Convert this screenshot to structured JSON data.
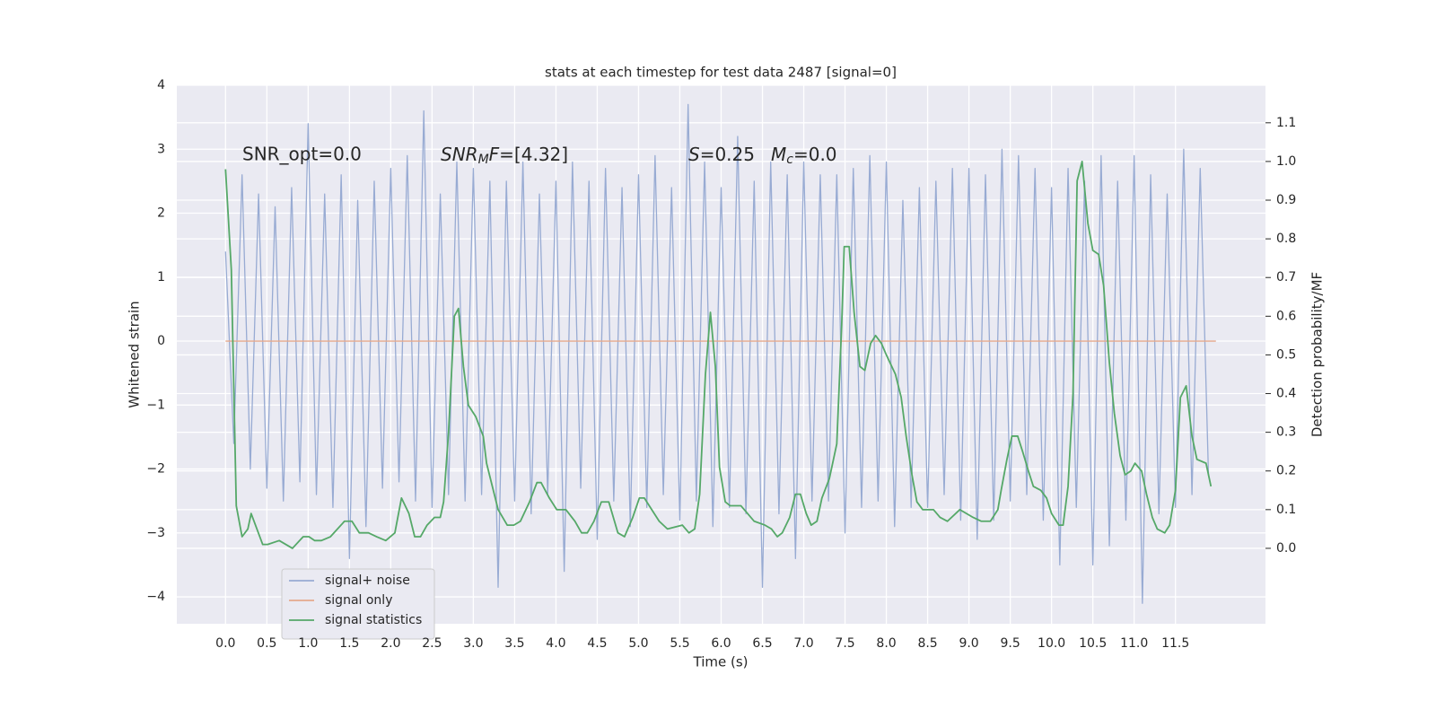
{
  "chart_data": {
    "type": "line",
    "title": "stats at each timestep for test data 2487 [signal=0]",
    "xlabel": "Time (s)",
    "ylabel": "Whitened strain",
    "y2label": "Detection probability/MF",
    "annotations": [
      [
        "SNR_opt=0.0"
      ],
      [
        "SNR",
        "M",
        "F",
        "=[4.32]"
      ],
      [
        "S",
        "=0.25",
        "M",
        "c",
        "=0.0"
      ]
    ],
    "xlim": [
      -0.59,
      12.59
    ],
    "ylim": [
      -4.42,
      4.0
    ],
    "y2lim": [
      -0.195,
      1.197
    ],
    "xticks": [
      {
        "value": 0,
        "label": "0.0"
      },
      0.5,
      {
        "value": 1,
        "label": "1.0"
      },
      1.5,
      {
        "value": 2,
        "label": "2.0"
      },
      2.5,
      {
        "value": 3,
        "label": "3.0"
      },
      3.5,
      {
        "value": 4,
        "label": "4.0"
      },
      4.5,
      {
        "value": 5,
        "label": "5.0"
      },
      5.5,
      {
        "value": 6,
        "label": "6.0"
      },
      6.5,
      {
        "value": 7,
        "label": "7.0"
      },
      7.5,
      {
        "value": 8,
        "label": "8.0"
      },
      8.5,
      {
        "value": 9,
        "label": "9.0"
      },
      9.5,
      {
        "value": 10,
        "label": "10.0"
      },
      10.5,
      {
        "value": 11,
        "label": "11.0"
      },
      11.5
    ],
    "yticks": [
      {
        "value": -4,
        "label": "−4"
      },
      {
        "value": -3,
        "label": "−3"
      },
      {
        "value": -2,
        "label": "−2"
      },
      {
        "value": -1,
        "label": "−1"
      },
      0,
      1,
      2,
      3,
      4
    ],
    "y2ticks": [
      {
        "value": 0,
        "label": "0.0"
      },
      0.1,
      0.2,
      0.3,
      0.4,
      0.5,
      0.6,
      0.7,
      0.8,
      0.9,
      {
        "value": 1,
        "label": "1.0"
      },
      1.1
    ],
    "grid": true,
    "legend": "lower left",
    "series": [
      {
        "name": "signal+ noise",
        "color": "#98abd3",
        "x": [
          0,
          0.1,
          0.2,
          0.3,
          0.4,
          0.5,
          0.6,
          0.7,
          0.8,
          0.9,
          1,
          1.1,
          1.2,
          1.3,
          1.4,
          1.5,
          1.6,
          1.7,
          1.8,
          1.9,
          2,
          2.1,
          2.2,
          2.3,
          2.4,
          2.5,
          2.6,
          2.7,
          2.8,
          2.9,
          3,
          3.1,
          3.2,
          3.3,
          3.4,
          3.5,
          3.6,
          3.7,
          3.8,
          3.9,
          4,
          4.1,
          4.2,
          4.3,
          4.4,
          4.5,
          4.6,
          4.7,
          4.8,
          4.9,
          5,
          5.1,
          5.2,
          5.3,
          5.4,
          5.5,
          5.6,
          5.7,
          5.8,
          5.9,
          6,
          6.1,
          6.2,
          6.3,
          6.4,
          6.5,
          6.6,
          6.7,
          6.8,
          6.9,
          7,
          7.1,
          7.2,
          7.3,
          7.4,
          7.5,
          7.6,
          7.7,
          7.8,
          7.9,
          8,
          8.1,
          8.2,
          8.3,
          8.4,
          8.5,
          8.6,
          8.7,
          8.8,
          8.9,
          9,
          9.1,
          9.2,
          9.3,
          9.4,
          9.5,
          9.6,
          9.7,
          9.8,
          9.9,
          10,
          10.1,
          10.2,
          10.3,
          10.4,
          10.5,
          10.6,
          10.7,
          10.8,
          10.9,
          11,
          11.1,
          11.2,
          11.3,
          11.4,
          11.5,
          11.6,
          11.7,
          11.8,
          11.9
        ],
        "values": [
          1.4,
          -1.6,
          2.6,
          -2.0,
          2.3,
          -2.3,
          2.1,
          -2.5,
          2.4,
          -2.2,
          3.4,
          -2.4,
          2.3,
          -2.6,
          2.6,
          -3.4,
          2.2,
          -2.9,
          2.5,
          -2.3,
          2.7,
          -2.2,
          2.9,
          -2.5,
          3.6,
          -2.6,
          2.3,
          -2.4,
          2.8,
          -2.5,
          2.7,
          -2.4,
          2.5,
          -3.85,
          2.5,
          -2.5,
          2.8,
          -2.7,
          2.3,
          -2.4,
          2.5,
          -3.6,
          2.8,
          -2.3,
          2.5,
          -3.1,
          2.7,
          -2.5,
          2.4,
          -2.9,
          2.6,
          -2.6,
          2.9,
          -2.4,
          2.4,
          -2.8,
          3.7,
          -2.5,
          2.8,
          -2.9,
          2.4,
          -2.6,
          3.2,
          -2.7,
          2.5,
          -3.85,
          2.8,
          -2.7,
          2.6,
          -3.4,
          2.8,
          -2.5,
          2.6,
          -2.5,
          2.6,
          -3.0,
          2.7,
          -2.6,
          2.9,
          -2.5,
          2.8,
          -2.9,
          2.2,
          -2.6,
          2.4,
          -2.6,
          2.5,
          -2.4,
          2.7,
          -2.8,
          2.7,
          -3.1,
          2.6,
          -2.8,
          3.0,
          -2.5,
          2.9,
          -2.4,
          2.7,
          -2.8,
          2.4,
          -3.5,
          2.7,
          -2.6,
          2.5,
          -3.5,
          2.9,
          -3.2,
          2.5,
          -2.8,
          2.9,
          -4.1,
          2.6,
          -2.7,
          2.3,
          -2.6,
          3.0,
          -2.4,
          2.7,
          -2.1
        ]
      },
      {
        "name": "signal only",
        "color": "#e6a98c",
        "x": [
          0,
          11.99
        ],
        "values": [
          0,
          0
        ]
      },
      {
        "name": "signal statistics",
        "color": "#55a868",
        "axis": "y2",
        "x": [
          0.0,
          0.07,
          0.13,
          0.2,
          0.27,
          0.31,
          0.38,
          0.45,
          0.51,
          0.65,
          0.81,
          0.94,
          1.01,
          1.08,
          1.16,
          1.27,
          1.44,
          1.53,
          1.62,
          1.73,
          1.83,
          1.94,
          2.05,
          2.13,
          2.22,
          2.29,
          2.36,
          2.44,
          2.53,
          2.6,
          2.64,
          2.7,
          2.77,
          2.82,
          2.88,
          2.94,
          3.03,
          3.12,
          3.16,
          3.23,
          3.3,
          3.41,
          3.49,
          3.57,
          3.68,
          3.77,
          3.82,
          3.92,
          4.01,
          4.12,
          4.23,
          4.31,
          4.38,
          4.46,
          4.55,
          4.64,
          4.75,
          4.83,
          4.93,
          5.01,
          5.07,
          5.16,
          5.25,
          5.35,
          5.53,
          5.61,
          5.68,
          5.74,
          5.81,
          5.87,
          5.93,
          5.98,
          6.05,
          6.11,
          6.24,
          6.4,
          6.53,
          6.61,
          6.68,
          6.74,
          6.83,
          6.9,
          6.96,
          7.03,
          7.09,
          7.16,
          7.22,
          7.31,
          7.4,
          7.46,
          7.49,
          7.55,
          7.61,
          7.68,
          7.74,
          7.81,
          7.87,
          7.94,
          8.0,
          8.11,
          8.18,
          8.24,
          8.31,
          8.37,
          8.44,
          8.57,
          8.65,
          8.74,
          8.89,
          9.05,
          9.15,
          9.26,
          9.35,
          9.39,
          9.46,
          9.52,
          9.59,
          9.65,
          9.72,
          9.78,
          9.87,
          9.94,
          10.0,
          10.09,
          10.14,
          10.2,
          10.26,
          10.31,
          10.37,
          10.44,
          10.5,
          10.57,
          10.63,
          10.7,
          10.76,
          10.83,
          10.89,
          10.96,
          11.01,
          11.09,
          11.15,
          11.22,
          11.28,
          11.37,
          11.43,
          11.5,
          11.56,
          11.63,
          11.7,
          11.76,
          11.87,
          11.93
        ],
        "values": [
          0.98,
          0.72,
          0.11,
          0.03,
          0.05,
          0.09,
          0.05,
          0.01,
          0.01,
          0.02,
          0.0,
          0.03,
          0.03,
          0.02,
          0.02,
          0.03,
          0.07,
          0.07,
          0.04,
          0.04,
          0.03,
          0.02,
          0.04,
          0.13,
          0.09,
          0.03,
          0.03,
          0.06,
          0.08,
          0.08,
          0.12,
          0.3,
          0.6,
          0.62,
          0.47,
          0.37,
          0.34,
          0.29,
          0.22,
          0.16,
          0.1,
          0.06,
          0.06,
          0.07,
          0.12,
          0.17,
          0.17,
          0.13,
          0.1,
          0.1,
          0.07,
          0.04,
          0.04,
          0.07,
          0.12,
          0.12,
          0.04,
          0.03,
          0.08,
          0.13,
          0.13,
          0.1,
          0.07,
          0.05,
          0.06,
          0.04,
          0.05,
          0.14,
          0.45,
          0.61,
          0.47,
          0.21,
          0.12,
          0.11,
          0.11,
          0.07,
          0.06,
          0.05,
          0.03,
          0.04,
          0.08,
          0.14,
          0.14,
          0.09,
          0.06,
          0.07,
          0.13,
          0.18,
          0.27,
          0.58,
          0.78,
          0.78,
          0.61,
          0.47,
          0.46,
          0.53,
          0.55,
          0.53,
          0.5,
          0.45,
          0.39,
          0.29,
          0.19,
          0.12,
          0.1,
          0.1,
          0.08,
          0.07,
          0.1,
          0.08,
          0.07,
          0.07,
          0.1,
          0.15,
          0.23,
          0.29,
          0.29,
          0.25,
          0.2,
          0.16,
          0.15,
          0.13,
          0.09,
          0.06,
          0.06,
          0.16,
          0.4,
          0.95,
          1.0,
          0.84,
          0.77,
          0.76,
          0.68,
          0.48,
          0.35,
          0.24,
          0.19,
          0.2,
          0.22,
          0.2,
          0.14,
          0.08,
          0.05,
          0.04,
          0.06,
          0.15,
          0.39,
          0.42,
          0.29,
          0.23,
          0.22,
          0.16
        ]
      }
    ]
  }
}
